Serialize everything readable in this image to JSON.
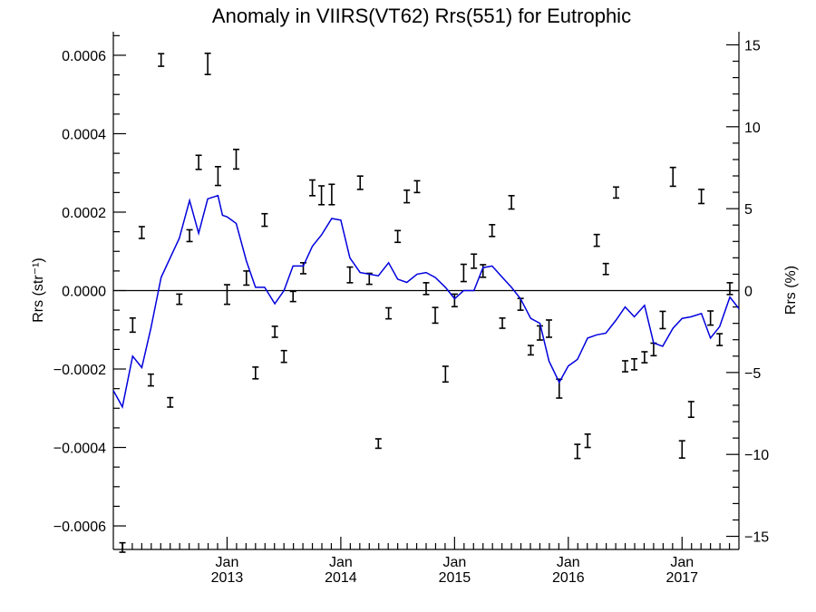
{
  "chart_data": {
    "type": "line",
    "title": "Anomaly in VIIRS(VT62) Rrs(551) for Eutrophic",
    "ylabel_left": "Rrs (str⁻¹)",
    "ylabel_right": "Rrs (%)",
    "xlim": [
      2012.0,
      2017.5
    ],
    "ylim_left": [
      -0.00066,
      0.00066
    ],
    "ylim_right": [
      -15.8,
      15.8
    ],
    "y_ticks_left": [
      {
        "v": 0.0006,
        "label": "0.0006"
      },
      {
        "v": 0.0004,
        "label": "0.0004"
      },
      {
        "v": 0.0002,
        "label": "0.0002"
      },
      {
        "v": 0.0,
        "label": "0.0000"
      },
      {
        "v": -0.0002,
        "label": "−0.0002"
      },
      {
        "v": -0.0004,
        "label": "−0.0004"
      },
      {
        "v": -0.0006,
        "label": "−0.0006"
      }
    ],
    "y_ticks_right": [
      {
        "v": 15,
        "label": "15"
      },
      {
        "v": 10,
        "label": "10"
      },
      {
        "v": 5,
        "label": "5"
      },
      {
        "v": 0,
        "label": "0"
      },
      {
        "v": -5,
        "label": "−5"
      },
      {
        "v": -10,
        "label": "−10"
      },
      {
        "v": -15,
        "label": "−15"
      }
    ],
    "x_ticks": [
      {
        "v": 2013.0,
        "month": "Jan",
        "year": "2013"
      },
      {
        "v": 2014.0,
        "month": "Jan",
        "year": "2014"
      },
      {
        "v": 2015.0,
        "month": "Jan",
        "year": "2015"
      },
      {
        "v": 2016.0,
        "month": "Jan",
        "year": "2016"
      },
      {
        "v": 2017.0,
        "month": "Jan",
        "year": "2017"
      }
    ],
    "zero_line": true,
    "series": [
      {
        "kind": "errorbar",
        "color": "#000000",
        "points": [
          {
            "x": 2012.08,
            "y": -0.000655,
            "err": 1.2e-05
          },
          {
            "x": 2012.17,
            "y": -8.8e-05,
            "err": 1.8e-05
          },
          {
            "x": 2012.25,
            "y": 0.000148,
            "err": 1.5e-05
          },
          {
            "x": 2012.33,
            "y": -0.000228,
            "err": 1.5e-05
          },
          {
            "x": 2012.42,
            "y": 0.000588,
            "err": 1.6e-05
          },
          {
            "x": 2012.5,
            "y": -0.000285,
            "err": 1.2e-05
          },
          {
            "x": 2012.58,
            "y": -2.2e-05,
            "err": 1.3e-05
          },
          {
            "x": 2012.67,
            "y": 0.00014,
            "err": 1.5e-05
          },
          {
            "x": 2012.75,
            "y": 0.000327,
            "err": 1.8e-05
          },
          {
            "x": 2012.83,
            "y": 0.000578,
            "err": 2.7e-05
          },
          {
            "x": 2012.92,
            "y": 0.000292,
            "err": 2.4e-05
          },
          {
            "x": 2013.0,
            "y": -1e-05,
            "err": 2.5e-05
          },
          {
            "x": 2013.08,
            "y": 0.000335,
            "err": 2.5e-05
          },
          {
            "x": 2013.17,
            "y": 3.2e-05,
            "err": 1.8e-05
          },
          {
            "x": 2013.25,
            "y": -0.00021,
            "err": 1.5e-05
          },
          {
            "x": 2013.33,
            "y": 0.00018,
            "err": 1.6e-05
          },
          {
            "x": 2013.42,
            "y": -0.000105,
            "err": 1.4e-05
          },
          {
            "x": 2013.5,
            "y": -0.000168,
            "err": 1.5e-05
          },
          {
            "x": 2013.58,
            "y": -1.5e-05,
            "err": 1.3e-05
          },
          {
            "x": 2013.67,
            "y": 5.7e-05,
            "err": 1.4e-05
          },
          {
            "x": 2013.75,
            "y": 0.000262,
            "err": 2e-05
          },
          {
            "x": 2013.83,
            "y": 0.000243,
            "err": 2.4e-05
          },
          {
            "x": 2013.92,
            "y": 0.000245,
            "err": 2.6e-05
          },
          {
            "x": 2014.08,
            "y": 4e-05,
            "err": 2e-05
          },
          {
            "x": 2014.17,
            "y": 0.000275,
            "err": 1.7e-05
          },
          {
            "x": 2014.25,
            "y": 3e-05,
            "err": 1.4e-05
          },
          {
            "x": 2014.33,
            "y": -0.00039,
            "err": 1.2e-05
          },
          {
            "x": 2014.42,
            "y": -5.8e-05,
            "err": 1.4e-05
          },
          {
            "x": 2014.5,
            "y": 0.000138,
            "err": 1.5e-05
          },
          {
            "x": 2014.58,
            "y": 0.00024,
            "err": 1.6e-05
          },
          {
            "x": 2014.67,
            "y": 0.000265,
            "err": 1.5e-05
          },
          {
            "x": 2014.75,
            "y": 5e-06,
            "err": 1.5e-05
          },
          {
            "x": 2014.83,
            "y": -6.3e-05,
            "err": 2e-05
          },
          {
            "x": 2014.92,
            "y": -0.000213,
            "err": 2e-05
          },
          {
            "x": 2015.0,
            "y": -2.5e-05,
            "err": 1.6e-05
          },
          {
            "x": 2015.08,
            "y": 4.5e-05,
            "err": 2.2e-05
          },
          {
            "x": 2015.17,
            "y": 7.5e-05,
            "err": 1.8e-05
          },
          {
            "x": 2015.25,
            "y": 5e-05,
            "err": 1.6e-05
          },
          {
            "x": 2015.33,
            "y": 0.000153,
            "err": 1.5e-05
          },
          {
            "x": 2015.42,
            "y": -8.3e-05,
            "err": 1.3e-05
          },
          {
            "x": 2015.5,
            "y": 0.000225,
            "err": 1.7e-05
          },
          {
            "x": 2015.58,
            "y": -3.5e-05,
            "err": 1.5e-05
          },
          {
            "x": 2015.67,
            "y": -0.000152,
            "err": 1.2e-05
          },
          {
            "x": 2015.75,
            "y": -0.000108,
            "err": 1.8e-05
          },
          {
            "x": 2015.83,
            "y": -9.7e-05,
            "err": 2.2e-05
          },
          {
            "x": 2015.92,
            "y": -0.00025,
            "err": 2.4e-05
          },
          {
            "x": 2016.08,
            "y": -0.00041,
            "err": 1.8e-05
          },
          {
            "x": 2016.17,
            "y": -0.000383,
            "err": 1.7e-05
          },
          {
            "x": 2016.25,
            "y": 0.000128,
            "err": 1.5e-05
          },
          {
            "x": 2016.33,
            "y": 5.5e-05,
            "err": 1.4e-05
          },
          {
            "x": 2016.42,
            "y": 0.00025,
            "err": 1.4e-05
          },
          {
            "x": 2016.5,
            "y": -0.000193,
            "err": 1.4e-05
          },
          {
            "x": 2016.58,
            "y": -0.000188,
            "err": 1.4e-05
          },
          {
            "x": 2016.67,
            "y": -0.00017,
            "err": 1.4e-05
          },
          {
            "x": 2016.75,
            "y": -0.00015,
            "err": 1.6e-05
          },
          {
            "x": 2016.83,
            "y": -7.5e-05,
            "err": 2.2e-05
          },
          {
            "x": 2016.92,
            "y": 0.00029,
            "err": 2.4e-05
          },
          {
            "x": 2017.0,
            "y": -0.000405,
            "err": 2.2e-05
          },
          {
            "x": 2017.08,
            "y": -0.000303,
            "err": 2e-05
          },
          {
            "x": 2017.17,
            "y": 0.00024,
            "err": 1.8e-05
          },
          {
            "x": 2017.25,
            "y": -7e-05,
            "err": 1.8e-05
          },
          {
            "x": 2017.33,
            "y": -0.000125,
            "err": 1.5e-05
          },
          {
            "x": 2017.42,
            "y": 5e-06,
            "err": 1.5e-05
          }
        ]
      },
      {
        "kind": "line",
        "color": "#0000dd",
        "axis": "right",
        "points": [
          {
            "x": 2012.0,
            "y": -6.1
          },
          {
            "x": 2012.08,
            "y": -7.1
          },
          {
            "x": 2012.17,
            "y": -4.0
          },
          {
            "x": 2012.25,
            "y": -4.7
          },
          {
            "x": 2012.33,
            "y": -2.3
          },
          {
            "x": 2012.42,
            "y": 0.8
          },
          {
            "x": 2012.5,
            "y": 2.0
          },
          {
            "x": 2012.58,
            "y": 3.2
          },
          {
            "x": 2012.67,
            "y": 5.5
          },
          {
            "x": 2012.75,
            "y": 3.5
          },
          {
            "x": 2012.83,
            "y": 5.6
          },
          {
            "x": 2012.92,
            "y": 5.8
          },
          {
            "x": 2012.96,
            "y": 4.6
          },
          {
            "x": 2013.0,
            "y": 4.5
          },
          {
            "x": 2013.08,
            "y": 4.1
          },
          {
            "x": 2013.17,
            "y": 1.8
          },
          {
            "x": 2013.25,
            "y": 0.2
          },
          {
            "x": 2013.33,
            "y": 0.2
          },
          {
            "x": 2013.42,
            "y": -0.8
          },
          {
            "x": 2013.5,
            "y": 0.0
          },
          {
            "x": 2013.58,
            "y": 1.5
          },
          {
            "x": 2013.67,
            "y": 1.5
          },
          {
            "x": 2013.75,
            "y": 2.7
          },
          {
            "x": 2013.83,
            "y": 3.4
          },
          {
            "x": 2013.92,
            "y": 4.4
          },
          {
            "x": 2014.0,
            "y": 4.3
          },
          {
            "x": 2014.08,
            "y": 2.0
          },
          {
            "x": 2014.17,
            "y": 1.1
          },
          {
            "x": 2014.25,
            "y": 1.0
          },
          {
            "x": 2014.33,
            "y": 0.9
          },
          {
            "x": 2014.42,
            "y": 1.7
          },
          {
            "x": 2014.5,
            "y": 0.7
          },
          {
            "x": 2014.58,
            "y": 0.5
          },
          {
            "x": 2014.67,
            "y": 1.0
          },
          {
            "x": 2014.75,
            "y": 1.1
          },
          {
            "x": 2014.83,
            "y": 0.8
          },
          {
            "x": 2014.92,
            "y": 0.2
          },
          {
            "x": 2015.0,
            "y": -0.5
          },
          {
            "x": 2015.08,
            "y": 0.0
          },
          {
            "x": 2015.17,
            "y": 0.0
          },
          {
            "x": 2015.25,
            "y": 1.4
          },
          {
            "x": 2015.33,
            "y": 1.5
          },
          {
            "x": 2015.42,
            "y": 0.8
          },
          {
            "x": 2015.5,
            "y": 0.2
          },
          {
            "x": 2015.58,
            "y": -0.5
          },
          {
            "x": 2015.67,
            "y": -1.7
          },
          {
            "x": 2015.75,
            "y": -2.0
          },
          {
            "x": 2015.83,
            "y": -4.3
          },
          {
            "x": 2015.92,
            "y": -5.6
          },
          {
            "x": 2016.0,
            "y": -4.6
          },
          {
            "x": 2016.08,
            "y": -4.2
          },
          {
            "x": 2016.17,
            "y": -2.9
          },
          {
            "x": 2016.25,
            "y": -2.7
          },
          {
            "x": 2016.33,
            "y": -2.6
          },
          {
            "x": 2016.42,
            "y": -1.8
          },
          {
            "x": 2016.5,
            "y": -1.0
          },
          {
            "x": 2016.58,
            "y": -1.6
          },
          {
            "x": 2016.67,
            "y": -0.9
          },
          {
            "x": 2016.75,
            "y": -3.2
          },
          {
            "x": 2016.83,
            "y": -3.4
          },
          {
            "x": 2016.92,
            "y": -2.3
          },
          {
            "x": 2017.0,
            "y": -1.7
          },
          {
            "x": 2017.08,
            "y": -1.6
          },
          {
            "x": 2017.17,
            "y": -1.4
          },
          {
            "x": 2017.25,
            "y": -2.9
          },
          {
            "x": 2017.33,
            "y": -2.2
          },
          {
            "x": 2017.42,
            "y": -0.4
          },
          {
            "x": 2017.5,
            "y": -1.1
          }
        ]
      }
    ]
  }
}
